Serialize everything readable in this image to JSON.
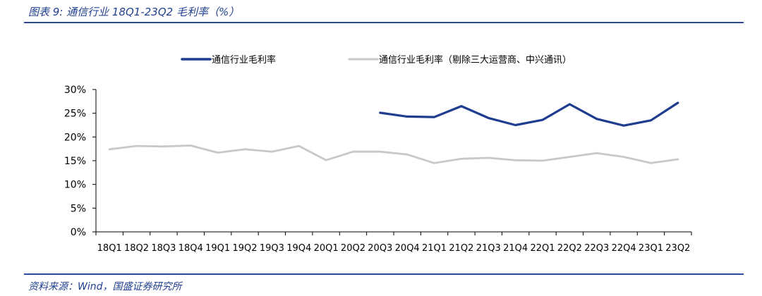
{
  "figure": {
    "title": "图表 9: 通信行业 18Q1-23Q2 毛利率（%）",
    "source": "资料来源：Wind，国盛证券研究所"
  },
  "colors": {
    "series1": "#1f3d8f",
    "series2": "#c8c8c8",
    "axis": "#000000",
    "rule": "#2b4a9a"
  },
  "chart_data": {
    "type": "line",
    "title": "",
    "xlabel": "",
    "ylabel": "",
    "ylim": [
      0,
      30
    ],
    "yticks": [
      0,
      5,
      10,
      15,
      20,
      25,
      30
    ],
    "ytick_labels": [
      "0%",
      "5%",
      "10%",
      "15%",
      "20%",
      "25%",
      "30%"
    ],
    "grid": false,
    "legend": "top",
    "categories": [
      "18Q1",
      "18Q2",
      "18Q3",
      "18Q4",
      "19Q1",
      "19Q2",
      "19Q3",
      "19Q4",
      "20Q1",
      "20Q2",
      "20Q3",
      "20Q4",
      "21Q1",
      "21Q2",
      "21Q3",
      "21Q4",
      "22Q1",
      "22Q2",
      "22Q3",
      "22Q4",
      "23Q1",
      "23Q2"
    ],
    "series": [
      {
        "name": "通信行业毛利率",
        "values": [
          null,
          null,
          null,
          null,
          null,
          null,
          null,
          null,
          null,
          null,
          25.1,
          24.3,
          24.2,
          26.5,
          24.0,
          22.5,
          23.6,
          26.9,
          23.8,
          22.4,
          23.5,
          27.2
        ]
      },
      {
        "name": "通信行业毛利率（剔除三大运营商、中兴通讯）",
        "values": [
          17.4,
          18.1,
          18.0,
          18.2,
          16.7,
          17.4,
          16.9,
          18.1,
          15.1,
          16.9,
          16.9,
          16.3,
          14.5,
          15.4,
          15.6,
          15.1,
          15.0,
          15.8,
          16.6,
          15.8,
          14.5,
          15.3
        ]
      }
    ]
  }
}
